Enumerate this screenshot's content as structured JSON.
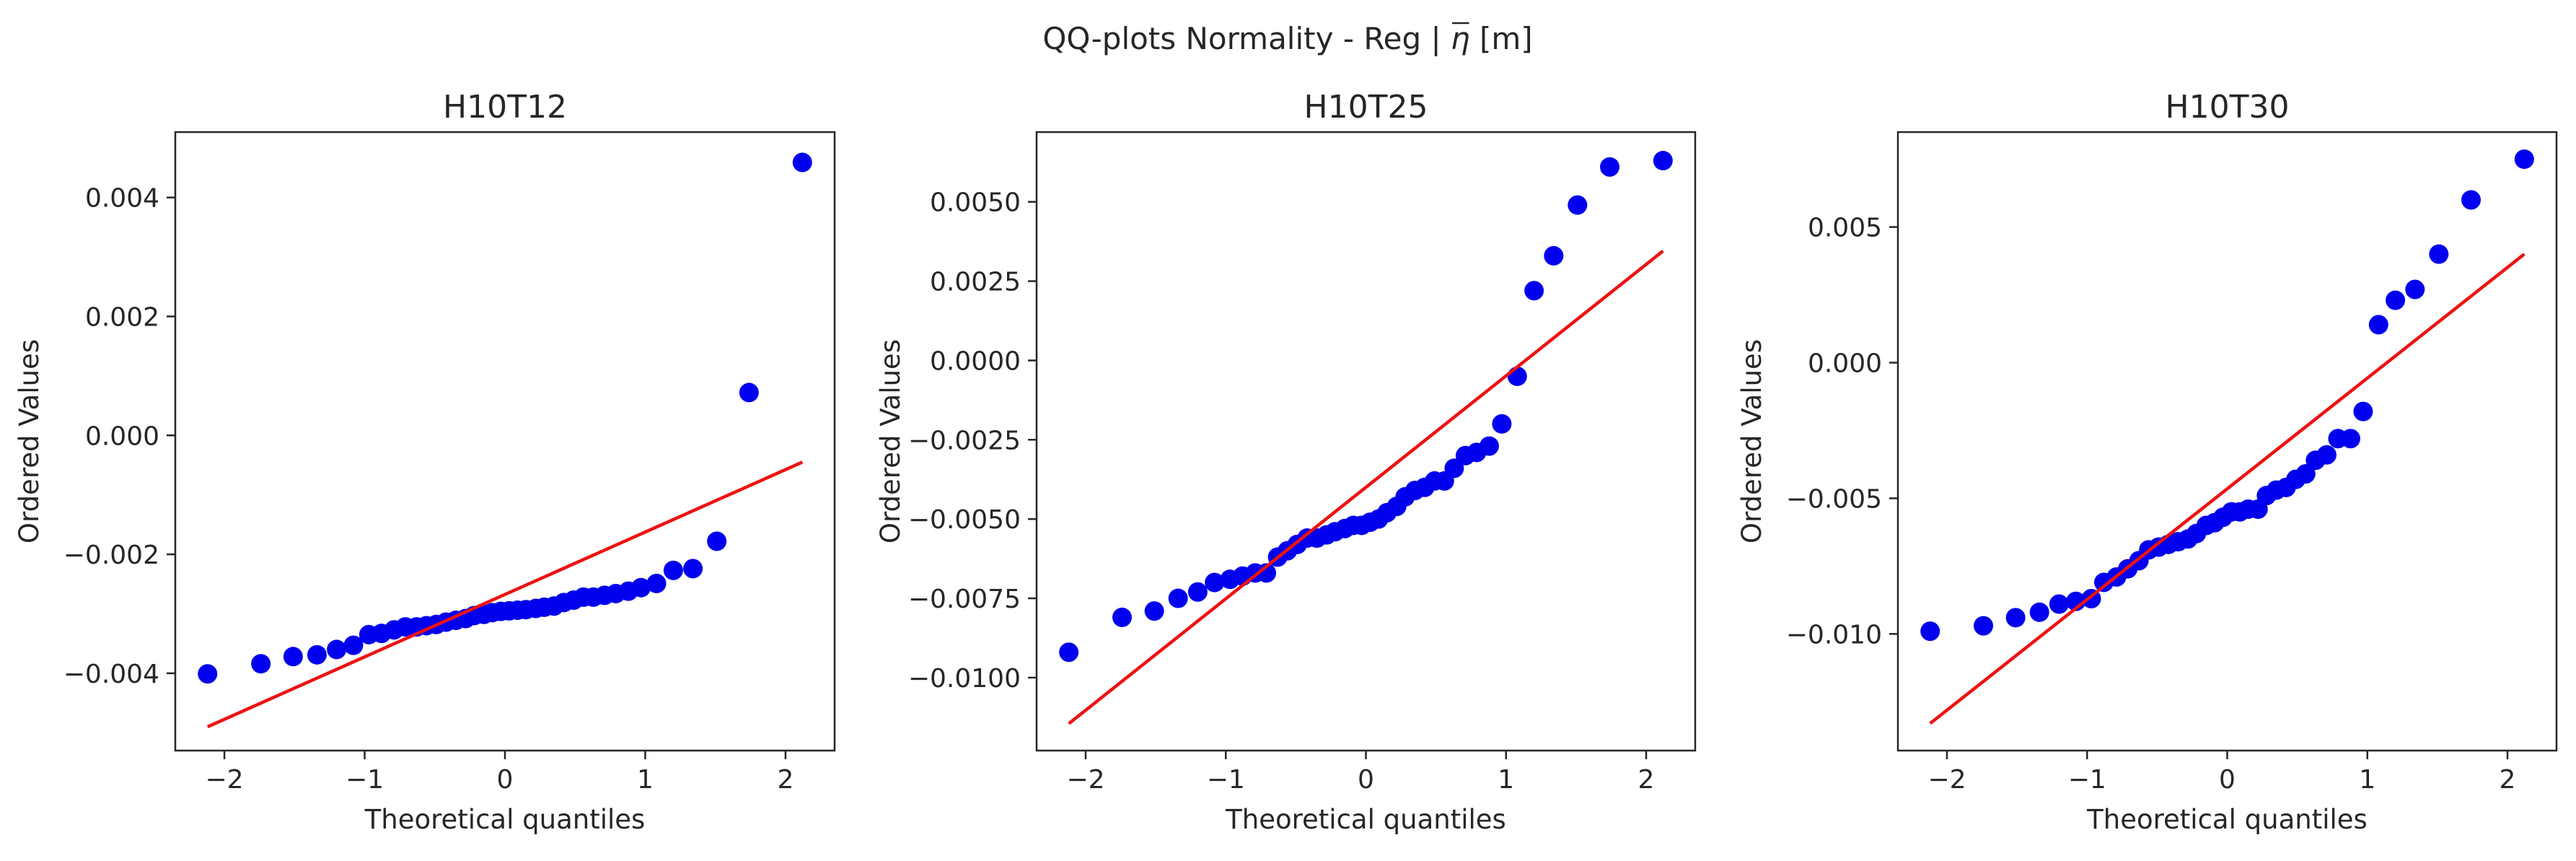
{
  "suptitle": {
    "prefix": "QQ-plots Normality - Reg | ",
    "symbol": "η",
    "suffix": " [m]"
  },
  "chart_data": [
    {
      "type": "scatter",
      "title": "H10T12",
      "xlabel": "Theoretical quantiles",
      "ylabel": "Ordered Values",
      "xlim": [
        -2.35,
        2.35
      ],
      "ylim": [
        -0.0053,
        0.0051
      ],
      "xticks": [
        -2,
        -1,
        0,
        1,
        2
      ],
      "xtick_labels": [
        "−2",
        "−1",
        "0",
        "1",
        "2"
      ],
      "yticks": [
        -0.004,
        -0.002,
        0.0,
        0.002,
        0.004
      ],
      "ytick_labels": [
        "−0.004",
        "−0.002",
        "0.000",
        "0.002",
        "0.004"
      ],
      "point_color": "#0000ee",
      "line_color": "#ee1111",
      "fit_line": {
        "x": [
          -2.12,
          2.12
        ],
        "y": [
          -0.0049,
          -0.00045
        ]
      },
      "points": {
        "x": [
          -2.12,
          -1.74,
          -1.51,
          -1.34,
          -1.2,
          -1.08,
          -0.97,
          -0.88,
          -0.79,
          -0.71,
          -0.63,
          -0.56,
          -0.49,
          -0.42,
          -0.35,
          -0.28,
          -0.22,
          -0.15,
          -0.09,
          -0.03,
          0.03,
          0.09,
          0.15,
          0.22,
          0.28,
          0.35,
          0.42,
          0.49,
          0.56,
          0.63,
          0.71,
          0.79,
          0.88,
          0.97,
          1.08,
          1.2,
          1.34,
          1.51,
          1.74,
          2.12
        ],
        "y": [
          -0.00401,
          -0.00384,
          -0.00372,
          -0.00369,
          -0.0036,
          -0.00353,
          -0.00335,
          -0.00333,
          -0.00327,
          -0.00322,
          -0.00322,
          -0.0032,
          -0.00318,
          -0.00314,
          -0.00311,
          -0.00308,
          -0.00303,
          -0.00301,
          -0.00298,
          -0.00296,
          -0.00295,
          -0.00294,
          -0.00293,
          -0.00291,
          -0.00289,
          -0.00287,
          -0.00281,
          -0.00277,
          -0.00272,
          -0.00272,
          -0.00269,
          -0.00266,
          -0.00262,
          -0.00256,
          -0.00249,
          -0.00227,
          -0.00224,
          -0.00178,
          0.00072,
          0.00459
        ]
      }
    },
    {
      "type": "scatter",
      "title": "H10T25",
      "xlabel": "Theoretical quantiles",
      "ylabel": "Ordered Values",
      "xlim": [
        -2.35,
        2.35
      ],
      "ylim": [
        -0.0123,
        0.0072
      ],
      "xticks": [
        -2,
        -1,
        0,
        1,
        2
      ],
      "xtick_labels": [
        "−2",
        "−1",
        "0",
        "1",
        "2"
      ],
      "yticks": [
        -0.01,
        -0.0075,
        -0.005,
        -0.0025,
        0.0,
        0.0025,
        0.005
      ],
      "ytick_labels": [
        "−0.0100",
        "−0.0075",
        "−0.0050",
        "−0.0025",
        "0.0000",
        "0.0025",
        "0.0050"
      ],
      "point_color": "#0000ee",
      "line_color": "#ee1111",
      "fit_line": {
        "x": [
          -2.12,
          2.12
        ],
        "y": [
          -0.01145,
          0.00345
        ]
      },
      "points": {
        "x": [
          -2.12,
          -1.74,
          -1.51,
          -1.34,
          -1.2,
          -1.08,
          -0.97,
          -0.88,
          -0.79,
          -0.71,
          -0.63,
          -0.56,
          -0.49,
          -0.42,
          -0.35,
          -0.28,
          -0.22,
          -0.15,
          -0.09,
          -0.03,
          0.03,
          0.09,
          0.15,
          0.22,
          0.28,
          0.35,
          0.42,
          0.49,
          0.56,
          0.63,
          0.71,
          0.79,
          0.88,
          0.97,
          1.08,
          1.2,
          1.34,
          1.51,
          1.74,
          2.12
        ],
        "y": [
          -0.0092,
          -0.0081,
          -0.0079,
          -0.0075,
          -0.0073,
          -0.007,
          -0.0069,
          -0.0068,
          -0.0067,
          -0.0067,
          -0.0062,
          -0.006,
          -0.0058,
          -0.0056,
          -0.0056,
          -0.0055,
          -0.0054,
          -0.0053,
          -0.0052,
          -0.0052,
          -0.0051,
          -0.005,
          -0.0048,
          -0.0046,
          -0.0043,
          -0.0041,
          -0.004,
          -0.0038,
          -0.0038,
          -0.0034,
          -0.003,
          -0.0029,
          -0.0027,
          -0.002,
          -0.0005,
          0.0022,
          0.0033,
          0.0049,
          0.0061,
          0.0063
        ]
      }
    },
    {
      "type": "scatter",
      "title": "H10T30",
      "xlabel": "Theoretical quantiles",
      "ylabel": "Ordered Values",
      "xlim": [
        -2.35,
        2.35
      ],
      "ylim": [
        -0.0143,
        0.0085
      ],
      "xticks": [
        -2,
        -1,
        0,
        1,
        2
      ],
      "xtick_labels": [
        "−2",
        "−1",
        "0",
        "1",
        "2"
      ],
      "yticks": [
        -0.01,
        -0.005,
        0.0,
        0.005
      ],
      "ytick_labels": [
        "−0.010",
        "−0.005",
        "0.000",
        "0.005"
      ],
      "point_color": "#0000ee",
      "line_color": "#ee1111",
      "fit_line": {
        "x": [
          -2.12,
          2.12
        ],
        "y": [
          -0.0133,
          0.004
        ]
      },
      "points": {
        "x": [
          -2.12,
          -1.74,
          -1.51,
          -1.34,
          -1.2,
          -1.08,
          -0.97,
          -0.88,
          -0.79,
          -0.71,
          -0.63,
          -0.56,
          -0.49,
          -0.42,
          -0.35,
          -0.28,
          -0.22,
          -0.15,
          -0.09,
          -0.03,
          0.03,
          0.09,
          0.15,
          0.22,
          0.28,
          0.35,
          0.42,
          0.49,
          0.56,
          0.63,
          0.71,
          0.79,
          0.88,
          0.97,
          1.08,
          1.2,
          1.34,
          1.51,
          1.74,
          2.12
        ],
        "y": [
          -0.0099,
          -0.0097,
          -0.0094,
          -0.0092,
          -0.0089,
          -0.0088,
          -0.0087,
          -0.0081,
          -0.0079,
          -0.0076,
          -0.0073,
          -0.0069,
          -0.0068,
          -0.0067,
          -0.0066,
          -0.0065,
          -0.0063,
          -0.006,
          -0.0059,
          -0.0057,
          -0.0055,
          -0.0055,
          -0.0054,
          -0.0054,
          -0.0049,
          -0.0047,
          -0.0046,
          -0.0043,
          -0.0041,
          -0.0036,
          -0.0034,
          -0.0028,
          -0.0028,
          -0.0018,
          0.0014,
          0.0023,
          0.0027,
          0.004,
          0.006,
          0.0075
        ]
      }
    }
  ]
}
